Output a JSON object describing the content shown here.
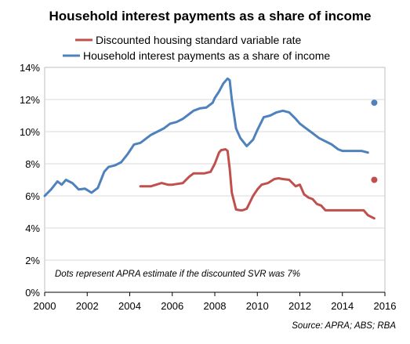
{
  "chart_data": {
    "type": "line",
    "title": "Household interest payments as a share of income",
    "xlabel": "",
    "ylabel": "",
    "xlim": [
      2000,
      2016
    ],
    "ylim": [
      0,
      14
    ],
    "x_ticks": [
      "2000",
      "2002",
      "2004",
      "2006",
      "2008",
      "2010",
      "2012",
      "2014",
      "2016"
    ],
    "y_ticks": [
      "0%",
      "2%",
      "4%",
      "6%",
      "8%",
      "10%",
      "12%",
      "14%"
    ],
    "grid": "horizontal",
    "legend_position": "top",
    "annotation": "Dots represent APRA estimate if the discounted SVR was 7%",
    "source": "Source:  APRA; ABS; RBA",
    "series": [
      {
        "name": "Discounted housing standard variable rate",
        "color": "#c0504d",
        "x": [
          2004.5,
          2005.0,
          2005.5,
          2005.8,
          2006.0,
          2006.5,
          2006.8,
          2007.0,
          2007.2,
          2007.5,
          2007.8,
          2008.0,
          2008.2,
          2008.3,
          2008.5,
          2008.6,
          2008.7,
          2008.8,
          2009.0,
          2009.2,
          2009.3,
          2009.5,
          2009.8,
          2010.0,
          2010.2,
          2010.5,
          2010.8,
          2011.0,
          2011.2,
          2011.5,
          2011.8,
          2012.0,
          2012.2,
          2012.4,
          2012.6,
          2012.8,
          2013.0,
          2013.2,
          2013.5,
          2013.8,
          2014.0,
          2014.5,
          2015.0,
          2015.2,
          2015.5
        ],
        "values": [
          6.6,
          6.6,
          6.8,
          6.7,
          6.7,
          6.8,
          7.2,
          7.4,
          7.4,
          7.4,
          7.5,
          8.0,
          8.7,
          8.85,
          8.9,
          8.8,
          7.7,
          6.2,
          5.15,
          5.1,
          5.1,
          5.2,
          6.0,
          6.4,
          6.7,
          6.8,
          7.05,
          7.1,
          7.05,
          7.0,
          6.6,
          6.7,
          6.1,
          5.9,
          5.8,
          5.5,
          5.4,
          5.1,
          5.1,
          5.1,
          5.1,
          5.1,
          5.1,
          4.8,
          4.6
        ]
      },
      {
        "name": "Household interest payments as a share of income",
        "color": "#4f81bd",
        "x": [
          2000.0,
          2000.3,
          2000.6,
          2000.8,
          2001.0,
          2001.3,
          2001.6,
          2001.9,
          2002.2,
          2002.5,
          2002.8,
          2003.0,
          2003.3,
          2003.6,
          2003.9,
          2004.2,
          2004.5,
          2004.8,
          2005.0,
          2005.3,
          2005.6,
          2005.9,
          2006.2,
          2006.5,
          2006.8,
          2007.0,
          2007.3,
          2007.6,
          2007.9,
          2008.0,
          2008.2,
          2008.4,
          2008.6,
          2008.7,
          2008.8,
          2009.0,
          2009.2,
          2009.5,
          2009.8,
          2010.0,
          2010.3,
          2010.6,
          2010.9,
          2011.2,
          2011.5,
          2011.8,
          2012.0,
          2012.3,
          2012.6,
          2012.9,
          2013.2,
          2013.5,
          2013.8,
          2014.0,
          2014.3,
          2014.6,
          2014.9,
          2015.2
        ],
        "values": [
          6.0,
          6.4,
          6.9,
          6.7,
          7.0,
          6.8,
          6.4,
          6.45,
          6.2,
          6.5,
          7.5,
          7.8,
          7.9,
          8.1,
          8.6,
          9.2,
          9.3,
          9.6,
          9.8,
          10.0,
          10.2,
          10.5,
          10.6,
          10.8,
          11.1,
          11.3,
          11.45,
          11.5,
          11.8,
          12.1,
          12.5,
          13.0,
          13.3,
          13.2,
          12.0,
          10.2,
          9.6,
          9.1,
          9.5,
          10.1,
          10.9,
          11.0,
          11.2,
          11.3,
          11.2,
          10.8,
          10.5,
          10.2,
          9.9,
          9.6,
          9.4,
          9.2,
          8.9,
          8.8,
          8.8,
          8.8,
          8.8,
          8.7
        ]
      }
    ],
    "apra_points": [
      {
        "x": 2015.5,
        "value": 11.8,
        "color": "#4f81bd"
      },
      {
        "x": 2015.5,
        "value": 7.0,
        "color": "#c0504d"
      }
    ]
  }
}
